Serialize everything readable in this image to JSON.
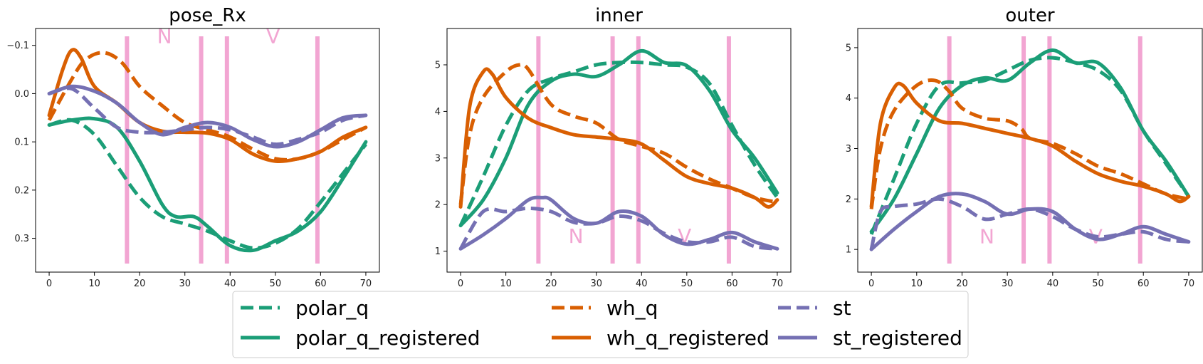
{
  "chart_data": [
    {
      "type": "line",
      "title": "pose_Rx",
      "xlim": [
        -3,
        73
      ],
      "ylim": [
        0.37,
        -0.135
      ],
      "y_inverted": true,
      "xticks": [
        0,
        10,
        20,
        30,
        40,
        50,
        60,
        70
      ],
      "yticks": [
        -0.1,
        0.0,
        0.1,
        0.2,
        0.3
      ],
      "ytick_labels": [
        "−0.1",
        "0.0",
        "0.1",
        "0.2",
        "0.3"
      ],
      "vlines": [
        17.2,
        33.6,
        39.3,
        59.3
      ],
      "annotations": [
        {
          "text": "N",
          "x": 25.5,
          "y": -0.105
        },
        {
          "text": "V",
          "x": 49.5,
          "y": -0.105
        }
      ],
      "series": [
        {
          "name": "polar_q",
          "style": "dashed",
          "color": "#1b9e77",
          "x": [
            0,
            5,
            10,
            15,
            20,
            25,
            30,
            35,
            40,
            45,
            50,
            55,
            60,
            65,
            70
          ],
          "y": [
            0.065,
            0.055,
            0.085,
            0.15,
            0.215,
            0.255,
            0.27,
            0.285,
            0.305,
            0.32,
            0.31,
            0.28,
            0.225,
            0.165,
            0.105
          ]
        },
        {
          "name": "polar_q_registered",
          "style": "solid",
          "color": "#1b9e77",
          "x": [
            0,
            5,
            10,
            15,
            20,
            25,
            28,
            32,
            35,
            40,
            45,
            50,
            55,
            60,
            65,
            70
          ],
          "y": [
            0.065,
            0.055,
            0.052,
            0.07,
            0.14,
            0.23,
            0.255,
            0.255,
            0.275,
            0.315,
            0.325,
            0.305,
            0.285,
            0.245,
            0.175,
            0.1
          ]
        },
        {
          "name": "wh_q",
          "style": "dashed",
          "color": "#d95f02",
          "x": [
            0,
            5,
            8,
            12,
            16,
            20,
            25,
            30,
            35,
            40,
            45,
            50,
            55,
            60,
            65,
            70
          ],
          "y": [
            0.055,
            -0.03,
            -0.07,
            -0.085,
            -0.065,
            -0.015,
            0.025,
            0.06,
            0.075,
            0.09,
            0.115,
            0.135,
            0.135,
            0.12,
            0.095,
            0.07
          ]
        },
        {
          "name": "wh_q_registered",
          "style": "solid",
          "color": "#d95f02",
          "x": [
            0,
            3,
            5,
            7,
            10,
            15,
            20,
            25,
            30,
            35,
            40,
            45,
            50,
            55,
            60,
            65,
            70
          ],
          "y": [
            0.045,
            -0.05,
            -0.09,
            -0.075,
            -0.015,
            0.02,
            0.06,
            0.078,
            0.08,
            0.082,
            0.095,
            0.125,
            0.14,
            0.135,
            0.12,
            0.09,
            0.07
          ]
        },
        {
          "name": "st",
          "style": "dashed",
          "color": "#7570b3",
          "x": [
            0,
            5,
            10,
            15,
            20,
            25,
            30,
            35,
            40,
            45,
            50,
            55,
            60,
            65,
            70
          ],
          "y": [
            0.0,
            -0.01,
            0.03,
            0.07,
            0.08,
            0.08,
            0.075,
            0.07,
            0.075,
            0.09,
            0.105,
            0.095,
            0.08,
            0.055,
            0.045
          ]
        },
        {
          "name": "st_registered",
          "style": "solid",
          "color": "#7570b3",
          "x": [
            0,
            5,
            10,
            15,
            20,
            25,
            30,
            35,
            40,
            45,
            50,
            55,
            60,
            65,
            70
          ],
          "y": [
            0.0,
            -0.015,
            -0.005,
            0.02,
            0.06,
            0.085,
            0.07,
            0.06,
            0.07,
            0.095,
            0.11,
            0.1,
            0.075,
            0.05,
            0.045
          ]
        }
      ]
    },
    {
      "type": "line",
      "title": "inner",
      "xlim": [
        -3,
        73
      ],
      "ylim": [
        0.55,
        5.78
      ],
      "xticks": [
        0,
        10,
        20,
        30,
        40,
        50,
        60,
        70
      ],
      "yticks": [
        1,
        2,
        3,
        4,
        5
      ],
      "ytick_labels": [
        "1",
        "2",
        "3",
        "4",
        "5"
      ],
      "vlines": [
        17.2,
        33.6,
        39.3,
        59.3
      ],
      "annotations": [
        {
          "text": "N",
          "x": 25.5,
          "y": 1.18
        },
        {
          "text": "V",
          "x": 49.5,
          "y": 1.18
        }
      ],
      "series": [
        {
          "name": "polar_q",
          "style": "dashed",
          "color": "#1b9e77",
          "x": [
            0,
            5,
            10,
            15,
            20,
            25,
            30,
            35,
            40,
            45,
            50,
            55,
            60,
            65,
            70
          ],
          "y": [
            1.55,
            2.6,
            3.7,
            4.45,
            4.7,
            4.85,
            5.0,
            5.05,
            5.05,
            5.0,
            4.95,
            4.6,
            3.7,
            2.85,
            2.15
          ]
        },
        {
          "name": "polar_q_registered",
          "style": "solid",
          "color": "#1b9e77",
          "x": [
            0,
            5,
            10,
            15,
            20,
            25,
            30,
            35,
            40,
            45,
            50,
            55,
            60,
            65,
            70
          ],
          "y": [
            1.55,
            2.1,
            3.0,
            4.15,
            4.65,
            4.8,
            4.75,
            5.0,
            5.3,
            5.05,
            4.98,
            4.45,
            3.6,
            3.0,
            2.25
          ]
        },
        {
          "name": "wh_q",
          "style": "dashed",
          "color": "#d95f02",
          "x": [
            0,
            2,
            5,
            10,
            13,
            15,
            20,
            25,
            30,
            35,
            40,
            45,
            50,
            55,
            60,
            65,
            70
          ],
          "y": [
            2.0,
            3.5,
            4.3,
            4.85,
            5.0,
            4.9,
            4.15,
            3.9,
            3.75,
            3.4,
            3.25,
            3.1,
            2.8,
            2.55,
            2.35,
            2.15,
            2.05
          ]
        },
        {
          "name": "wh_q_registered",
          "style": "solid",
          "color": "#d95f02",
          "x": [
            0,
            2,
            5,
            7,
            10,
            15,
            20,
            25,
            30,
            35,
            40,
            45,
            50,
            55,
            60,
            65,
            68,
            70
          ],
          "y": [
            1.95,
            4.1,
            4.85,
            4.8,
            4.3,
            3.85,
            3.65,
            3.5,
            3.45,
            3.4,
            3.3,
            2.95,
            2.6,
            2.45,
            2.35,
            2.15,
            1.95,
            2.1
          ]
        },
        {
          "name": "st",
          "style": "dashed",
          "color": "#7570b3",
          "x": [
            0,
            5,
            10,
            15,
            20,
            25,
            30,
            35,
            40,
            45,
            50,
            55,
            60,
            65,
            70
          ],
          "y": [
            1.05,
            1.85,
            1.85,
            1.92,
            1.85,
            1.62,
            1.6,
            1.75,
            1.65,
            1.38,
            1.2,
            1.2,
            1.3,
            1.1,
            1.05
          ]
        },
        {
          "name": "st_registered",
          "style": "solid",
          "color": "#7570b3",
          "x": [
            0,
            5,
            10,
            15,
            18,
            20,
            25,
            30,
            35,
            40,
            45,
            50,
            55,
            60,
            65,
            70
          ],
          "y": [
            1.05,
            1.35,
            1.7,
            2.1,
            2.15,
            2.1,
            1.7,
            1.6,
            1.85,
            1.75,
            1.35,
            1.15,
            1.25,
            1.4,
            1.2,
            1.05
          ]
        }
      ]
    },
    {
      "type": "line",
      "title": "outer",
      "xlim": [
        -3,
        73
      ],
      "ylim": [
        0.55,
        5.38
      ],
      "xticks": [
        0,
        10,
        20,
        30,
        40,
        50,
        60,
        70
      ],
      "yticks": [
        1,
        2,
        3,
        4,
        5
      ],
      "ytick_labels": [
        "1",
        "2",
        "3",
        "4",
        "5"
      ],
      "vlines": [
        17.2,
        33.6,
        39.3,
        59.3
      ],
      "annotations": [
        {
          "text": "N",
          "x": 25.5,
          "y": 1.12
        },
        {
          "text": "V",
          "x": 49.5,
          "y": 1.12
        }
      ],
      "series": [
        {
          "name": "polar_q",
          "style": "dashed",
          "color": "#1b9e77",
          "x": [
            0,
            5,
            10,
            15,
            20,
            25,
            30,
            35,
            40,
            45,
            50,
            55,
            60,
            65,
            70
          ],
          "y": [
            1.3,
            2.4,
            3.5,
            4.25,
            4.3,
            4.35,
            4.55,
            4.75,
            4.8,
            4.7,
            4.55,
            4.15,
            3.35,
            2.7,
            2.05
          ]
        },
        {
          "name": "polar_q_registered",
          "style": "solid",
          "color": "#1b9e77",
          "x": [
            0,
            5,
            10,
            15,
            20,
            25,
            30,
            35,
            40,
            45,
            50,
            55,
            60,
            65,
            70
          ],
          "y": [
            1.35,
            2.0,
            2.9,
            3.8,
            4.25,
            4.4,
            4.35,
            4.7,
            4.95,
            4.7,
            4.7,
            4.2,
            3.35,
            2.75,
            2.05
          ]
        },
        {
          "name": "wh_q",
          "style": "dashed",
          "color": "#d95f02",
          "x": [
            0,
            2,
            5,
            10,
            14,
            17,
            20,
            25,
            30,
            33,
            35,
            40,
            45,
            50,
            55,
            60,
            65,
            70
          ],
          "y": [
            1.8,
            3.0,
            3.75,
            4.25,
            4.35,
            4.15,
            3.8,
            3.6,
            3.55,
            3.4,
            3.2,
            3.1,
            2.9,
            2.65,
            2.5,
            2.3,
            2.1,
            2.0
          ]
        },
        {
          "name": "wh_q_registered",
          "style": "solid",
          "color": "#d95f02",
          "x": [
            0,
            2,
            5,
            7,
            10,
            15,
            20,
            25,
            30,
            35,
            40,
            45,
            50,
            55,
            60,
            65,
            68,
            70
          ],
          "y": [
            1.85,
            3.5,
            4.2,
            4.25,
            3.9,
            3.55,
            3.5,
            3.4,
            3.3,
            3.2,
            3.05,
            2.75,
            2.5,
            2.35,
            2.25,
            2.1,
            1.95,
            2.05
          ]
        },
        {
          "name": "st",
          "style": "dashed",
          "color": "#7570b3",
          "x": [
            0,
            2,
            5,
            10,
            15,
            20,
            25,
            30,
            35,
            40,
            45,
            50,
            55,
            60,
            65,
            70
          ],
          "y": [
            1.0,
            1.75,
            1.85,
            1.9,
            2.0,
            1.85,
            1.6,
            1.7,
            1.8,
            1.65,
            1.4,
            1.25,
            1.3,
            1.35,
            1.2,
            1.15
          ]
        },
        {
          "name": "st_registered",
          "style": "solid",
          "color": "#7570b3",
          "x": [
            0,
            5,
            10,
            15,
            20,
            25,
            30,
            35,
            40,
            45,
            50,
            55,
            60,
            65,
            70
          ],
          "y": [
            1.0,
            1.4,
            1.75,
            2.05,
            2.1,
            1.95,
            1.7,
            1.8,
            1.75,
            1.4,
            1.2,
            1.3,
            1.45,
            1.3,
            1.15
          ]
        }
      ]
    }
  ],
  "colors": {
    "polar": "#1b9e77",
    "wh": "#d95f02",
    "st": "#7570b3",
    "vline": "#f2a5d2",
    "annotation": "#f2a5d2"
  },
  "legend": {
    "location": "bottom-center",
    "ncol": 3,
    "entries": [
      {
        "label": "polar_q",
        "color": "#1b9e77",
        "style": "dashed"
      },
      {
        "label": "polar_q_registered",
        "color": "#1b9e77",
        "style": "solid"
      },
      {
        "label": "wh_q",
        "color": "#d95f02",
        "style": "dashed"
      },
      {
        "label": "wh_q_registered",
        "color": "#d95f02",
        "style": "solid"
      },
      {
        "label": "st",
        "color": "#7570b3",
        "style": "dashed"
      },
      {
        "label": "st_registered",
        "color": "#7570b3",
        "style": "solid"
      }
    ]
  }
}
